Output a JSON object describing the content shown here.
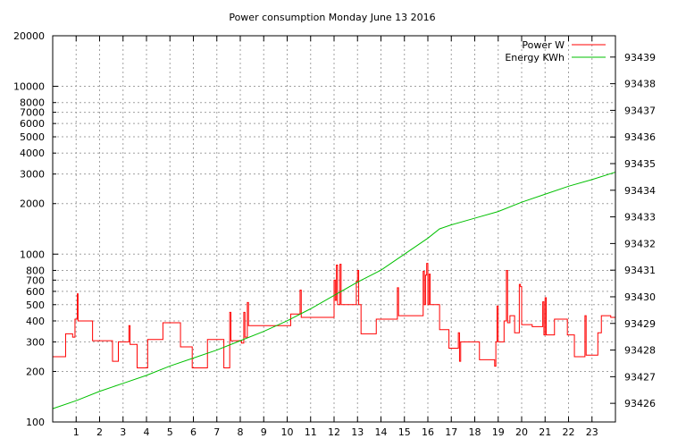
{
  "chart_data": {
    "type": "line",
    "title": "Power consumption Monday June 13 2016",
    "xlabel": "",
    "ylabel": "",
    "x_ticks": [
      "1",
      "2",
      "3",
      "4",
      "5",
      "6",
      "7",
      "8",
      "9",
      "10",
      "11",
      "12",
      "13",
      "14",
      "15",
      "16",
      "17",
      "18",
      "19",
      "20",
      "21",
      "22",
      "23"
    ],
    "xlim": [
      0,
      24
    ],
    "y_left": {
      "scale": "log",
      "ylim": [
        100,
        20000
      ],
      "ticks": [
        100,
        200,
        300,
        400,
        500,
        600,
        700,
        800,
        1000,
        2000,
        3000,
        4000,
        5000,
        6000,
        7000,
        8000,
        10000,
        20000
      ]
    },
    "y_right": {
      "scale": "linear",
      "ylim": [
        93425.3,
        93439.8
      ],
      "ticks": [
        93426,
        93427,
        93428,
        93429,
        93430,
        93431,
        93432,
        93433,
        93434,
        93435,
        93436,
        93437,
        93438,
        93439
      ]
    },
    "grid": true,
    "legend_position": "top-right",
    "series": [
      {
        "name": "Power W",
        "axis": "left",
        "color": "#ff0000",
        "points": [
          [
            0,
            245
          ],
          [
            0.55,
            245
          ],
          [
            0.55,
            335
          ],
          [
            0.85,
            335
          ],
          [
            0.85,
            320
          ],
          [
            0.95,
            320
          ],
          [
            0.95,
            410
          ],
          [
            1.05,
            410
          ],
          [
            1.05,
            580
          ],
          [
            1.08,
            580
          ],
          [
            1.08,
            400
          ],
          [
            1.7,
            400
          ],
          [
            1.7,
            305
          ],
          [
            2.55,
            305
          ],
          [
            2.55,
            230
          ],
          [
            2.8,
            230
          ],
          [
            2.8,
            300
          ],
          [
            3.25,
            300
          ],
          [
            3.25,
            375
          ],
          [
            3.3,
            375
          ],
          [
            3.3,
            290
          ],
          [
            3.6,
            290
          ],
          [
            3.6,
            210
          ],
          [
            4.05,
            210
          ],
          [
            4.05,
            310
          ],
          [
            4.7,
            310
          ],
          [
            4.7,
            390
          ],
          [
            5.45,
            390
          ],
          [
            5.45,
            280
          ],
          [
            5.95,
            280
          ],
          [
            5.95,
            210
          ],
          [
            6.6,
            210
          ],
          [
            6.6,
            310
          ],
          [
            7.3,
            310
          ],
          [
            7.3,
            210
          ],
          [
            7.55,
            210
          ],
          [
            7.55,
            450
          ],
          [
            7.6,
            450
          ],
          [
            7.6,
            305
          ],
          [
            8.05,
            305
          ],
          [
            8.05,
            295
          ],
          [
            8.15,
            295
          ],
          [
            8.15,
            450
          ],
          [
            8.2,
            450
          ],
          [
            8.2,
            320
          ],
          [
            8.3,
            320
          ],
          [
            8.3,
            515
          ],
          [
            8.35,
            515
          ],
          [
            8.35,
            375
          ],
          [
            10.15,
            375
          ],
          [
            10.15,
            440
          ],
          [
            10.55,
            440
          ],
          [
            10.55,
            610
          ],
          [
            10.6,
            610
          ],
          [
            10.6,
            420
          ],
          [
            12.0,
            420
          ],
          [
            12.0,
            700
          ],
          [
            12.05,
            700
          ],
          [
            12.05,
            530
          ],
          [
            12.1,
            530
          ],
          [
            12.1,
            860
          ],
          [
            12.15,
            860
          ],
          [
            12.15,
            500
          ],
          [
            12.25,
            500
          ],
          [
            12.25,
            870
          ],
          [
            12.3,
            870
          ],
          [
            12.3,
            500
          ],
          [
            12.95,
            500
          ],
          [
            12.95,
            690
          ],
          [
            13.0,
            690
          ],
          [
            13.0,
            800
          ],
          [
            13.05,
            800
          ],
          [
            13.05,
            500
          ],
          [
            13.15,
            500
          ],
          [
            13.15,
            335
          ],
          [
            13.8,
            335
          ],
          [
            13.8,
            410
          ],
          [
            14.7,
            410
          ],
          [
            14.7,
            630
          ],
          [
            14.75,
            630
          ],
          [
            14.75,
            430
          ],
          [
            15.8,
            430
          ],
          [
            15.8,
            790
          ],
          [
            15.85,
            790
          ],
          [
            15.85,
            500
          ],
          [
            15.9,
            500
          ],
          [
            15.9,
            750
          ],
          [
            15.95,
            750
          ],
          [
            15.95,
            880
          ],
          [
            16.0,
            880
          ],
          [
            16.0,
            500
          ],
          [
            16.05,
            500
          ],
          [
            16.05,
            760
          ],
          [
            16.1,
            760
          ],
          [
            16.1,
            500
          ],
          [
            16.5,
            500
          ],
          [
            16.5,
            355
          ],
          [
            16.9,
            355
          ],
          [
            16.9,
            275
          ],
          [
            17.3,
            275
          ],
          [
            17.3,
            340
          ],
          [
            17.35,
            340
          ],
          [
            17.35,
            230
          ],
          [
            17.4,
            230
          ],
          [
            17.4,
            300
          ],
          [
            18.2,
            300
          ],
          [
            18.2,
            235
          ],
          [
            18.85,
            235
          ],
          [
            18.85,
            215
          ],
          [
            18.9,
            215
          ],
          [
            18.9,
            300
          ],
          [
            18.95,
            300
          ],
          [
            18.95,
            490
          ],
          [
            19.0,
            490
          ],
          [
            19.0,
            300
          ],
          [
            19.25,
            300
          ],
          [
            19.25,
            400
          ],
          [
            19.35,
            400
          ],
          [
            19.35,
            800
          ],
          [
            19.4,
            800
          ],
          [
            19.4,
            390
          ],
          [
            19.5,
            390
          ],
          [
            19.5,
            430
          ],
          [
            19.7,
            430
          ],
          [
            19.7,
            340
          ],
          [
            19.9,
            340
          ],
          [
            19.9,
            660
          ],
          [
            19.95,
            660
          ],
          [
            19.95,
            640
          ],
          [
            20.0,
            640
          ],
          [
            20.0,
            380
          ],
          [
            20.45,
            380
          ],
          [
            20.45,
            370
          ],
          [
            20.9,
            370
          ],
          [
            20.9,
            520
          ],
          [
            20.95,
            520
          ],
          [
            20.95,
            330
          ],
          [
            21.0,
            330
          ],
          [
            21.0,
            550
          ],
          [
            21.05,
            550
          ],
          [
            21.05,
            330
          ],
          [
            21.4,
            330
          ],
          [
            21.4,
            410
          ],
          [
            21.95,
            410
          ],
          [
            21.95,
            330
          ],
          [
            22.25,
            330
          ],
          [
            22.25,
            245
          ],
          [
            22.7,
            245
          ],
          [
            22.7,
            430
          ],
          [
            22.75,
            430
          ],
          [
            22.75,
            250
          ],
          [
            23.25,
            250
          ],
          [
            23.25,
            340
          ],
          [
            23.4,
            340
          ],
          [
            23.4,
            430
          ],
          [
            23.8,
            430
          ],
          [
            23.8,
            420
          ],
          [
            24,
            420
          ]
        ]
      },
      {
        "name": "Energy KWh",
        "axis": "right",
        "color": "#00c000",
        "points": [
          [
            0,
            93425.8
          ],
          [
            1,
            93426.1
          ],
          [
            2,
            93426.45
          ],
          [
            3,
            93426.75
          ],
          [
            4,
            93427.05
          ],
          [
            5,
            93427.4
          ],
          [
            6,
            93427.7
          ],
          [
            7,
            93428.0
          ],
          [
            8,
            93428.35
          ],
          [
            9,
            93428.7
          ],
          [
            10,
            93429.1
          ],
          [
            11,
            93429.55
          ],
          [
            12,
            93430.05
          ],
          [
            13,
            93430.55
          ],
          [
            14,
            93431.0
          ],
          [
            15,
            93431.6
          ],
          [
            16,
            93432.2
          ],
          [
            16.5,
            93432.55
          ],
          [
            17,
            93432.7
          ],
          [
            18,
            93432.95
          ],
          [
            19,
            93433.2
          ],
          [
            20,
            93433.55
          ],
          [
            21,
            93433.85
          ],
          [
            22,
            93434.15
          ],
          [
            23,
            93434.4
          ],
          [
            24,
            93434.68
          ]
        ]
      }
    ]
  }
}
